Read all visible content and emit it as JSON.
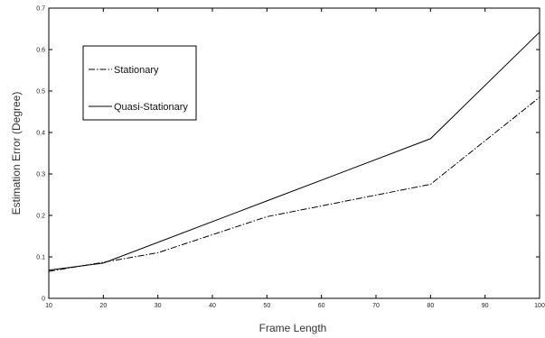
{
  "chart_data": {
    "type": "line",
    "title": "",
    "xlabel": "Frame Length",
    "ylabel": "Estimation Error (Degree)",
    "xlim": [
      10,
      100
    ],
    "ylim": [
      0,
      0.7
    ],
    "xticks": [
      "10",
      "20",
      "30",
      "40",
      "50",
      "60",
      "70",
      "80",
      "90",
      "100"
    ],
    "yticks": [
      "0",
      "0.1",
      "0.2",
      "0.3",
      "0.4",
      "0.5",
      "0.6",
      "0.7"
    ],
    "grid": false,
    "legend_position": "top-left",
    "series": [
      {
        "name": "Stationary",
        "line_style": "dash-dot",
        "color": "#000000",
        "x": [
          10,
          20,
          30,
          50,
          80,
          100
        ],
        "y": [
          0.065,
          0.087,
          0.11,
          0.197,
          0.275,
          0.485
        ]
      },
      {
        "name": "Quasi-Stationary",
        "line_style": "solid",
        "color": "#000000",
        "x": [
          10,
          20,
          50,
          80,
          100
        ],
        "y": [
          0.068,
          0.085,
          0.235,
          0.385,
          0.642
        ]
      }
    ]
  }
}
